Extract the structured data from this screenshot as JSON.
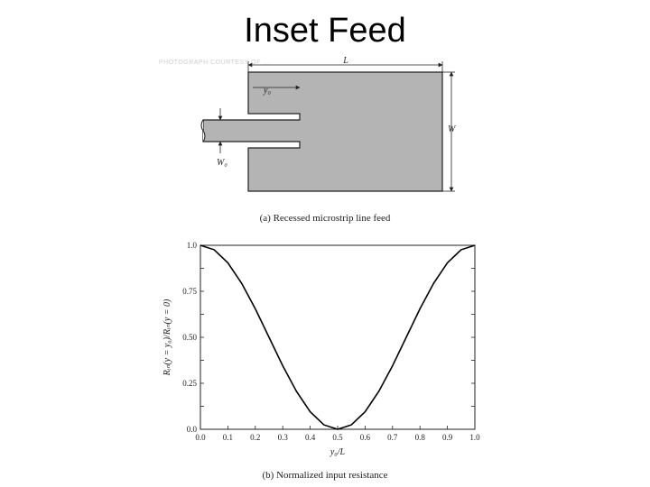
{
  "slide": {
    "title": "Inset Feed",
    "watermark": "PHOTOGRAPH COURTESY OF ..."
  },
  "diagram": {
    "label_L": "L",
    "label_y0": "y₀",
    "label_W": "W",
    "label_W0": "W₀",
    "caption": "(a) Recessed microstrip line feed",
    "patch_fill": "#b4b4b4"
  },
  "chart_data": {
    "type": "line",
    "caption": "(b) Normalized input resistance",
    "xlabel": "y₀/L",
    "ylabel": "Rᵢₙ(y = y₀)/Rᵢₙ(y = 0)",
    "xlim": [
      0,
      1
    ],
    "ylim": [
      0,
      1
    ],
    "x_ticks": [
      "0.0",
      "0.1",
      "0.2",
      "0.3",
      "0.4",
      "0.5",
      "0.6",
      "0.7",
      "0.8",
      "0.9",
      "1.0"
    ],
    "y_ticks": [
      "0.0",
      "0.25",
      "0.50",
      "0.75",
      "1.0"
    ],
    "y_tick_values": [
      0,
      0.25,
      0.5,
      0.75,
      1.0
    ],
    "series": [
      {
        "x": [
          0.0,
          0.05,
          0.1,
          0.15,
          0.2,
          0.25,
          0.3,
          0.35,
          0.4,
          0.45,
          0.5,
          0.55,
          0.6,
          0.65,
          0.7,
          0.75,
          0.8,
          0.85,
          0.9,
          0.95,
          1.0
        ],
        "y": [
          1.0,
          0.976,
          0.905,
          0.794,
          0.655,
          0.5,
          0.345,
          0.206,
          0.095,
          0.024,
          0.0,
          0.024,
          0.095,
          0.206,
          0.345,
          0.5,
          0.655,
          0.794,
          0.905,
          0.976,
          1.0
        ]
      }
    ],
    "grid": false,
    "line_color": "#000000"
  }
}
